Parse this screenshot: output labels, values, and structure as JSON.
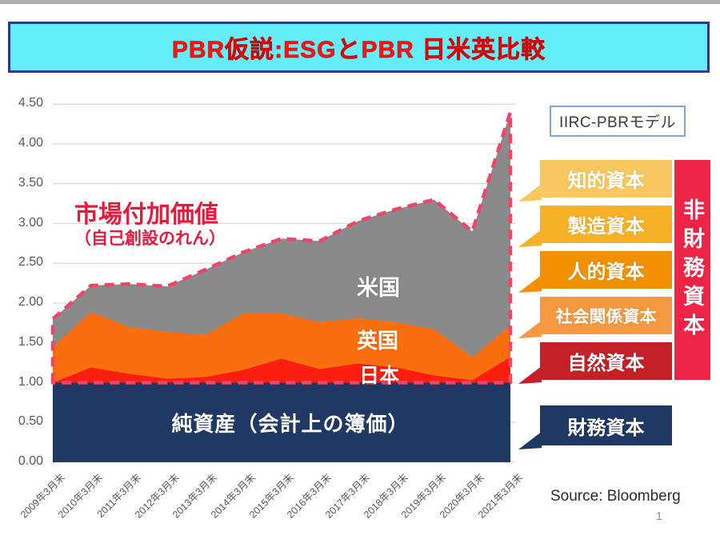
{
  "header": {
    "title": "PBR仮説:ESGとPBR 日米英比較"
  },
  "chart_data": {
    "type": "area",
    "categories": [
      "2009年3月末",
      "2010年3月末",
      "2011年3月末",
      "2012年3月末",
      "2013年3月末",
      "2014年3月末",
      "2015年3月末",
      "2016年3月末",
      "2017年3月末",
      "2018年3月末",
      "2019年3月末",
      "2020年3月末",
      "2021年3月末"
    ],
    "series": [
      {
        "name": "米国",
        "color": "#8a8a8a",
        "values": [
          1.8,
          2.22,
          2.24,
          2.21,
          2.42,
          2.64,
          2.81,
          2.78,
          3.03,
          3.18,
          3.3,
          2.9,
          4.4
        ]
      },
      {
        "name": "英国",
        "color": "#fa6e0f",
        "values": [
          1.45,
          1.89,
          1.7,
          1.64,
          1.6,
          1.87,
          1.87,
          1.76,
          1.81,
          1.76,
          1.67,
          1.32,
          1.72
        ]
      },
      {
        "name": "日本",
        "color": "#fb1e0e",
        "values": [
          1.0,
          1.19,
          1.11,
          1.05,
          1.07,
          1.16,
          1.3,
          1.17,
          1.24,
          1.19,
          1.09,
          1.03,
          1.32
        ]
      },
      {
        "name": "純資産",
        "color": "#1f3864",
        "values": [
          1.0,
          1.0,
          1.0,
          1.0,
          1.0,
          1.0,
          1.0,
          1.0,
          1.0,
          1.0,
          1.0,
          1.0,
          1.0
        ]
      }
    ],
    "ylim": [
      0,
      4.5
    ],
    "ytick_labels": [
      "0.00",
      "0.50",
      "1.00",
      "1.50",
      "2.00",
      "2.50",
      "3.00",
      "3.50",
      "4.00",
      "4.50"
    ],
    "grid": true,
    "legend_position": "none",
    "dashed_outline": {
      "color": "#ef4568",
      "follows": "米国 top line + 1.00 baseline",
      "baseline_value": 1.0
    },
    "annotations": {
      "market_value_line1": "市場付加価値",
      "market_value_line2": "（自己創設のれん）",
      "us_label": "米国",
      "uk_label": "英国",
      "jp_label": "日本",
      "book_value_label": "純資産（会計上の簿価）"
    }
  },
  "right_panel": {
    "model_title": "IIRC-PBRモデル",
    "capitals": [
      {
        "label": "知的資本",
        "color": "#f8c75f"
      },
      {
        "label": "製造資本",
        "color": "#f6b126"
      },
      {
        "label": "人的資本",
        "color": "#f19100"
      },
      {
        "label": "社会関係資本",
        "color": "#f5983f"
      },
      {
        "label": "自然資本",
        "color": "#c32127"
      },
      {
        "label": "財務資本",
        "color": "#1f3864"
      }
    ],
    "non_financial_label": "非財務資本"
  },
  "footer": {
    "source": "Source: Bloomberg",
    "page_number": "1"
  },
  "colors": {
    "title_bg": "#63edf8",
    "title_border": "#2b3990",
    "title_text": "#ff1111",
    "gridline": "#d9d9d9",
    "axis_text": "#595959",
    "dashed_line": "#ef4568",
    "non_financial_bar": "#ee2446",
    "annotation_red": "#e8193c"
  }
}
